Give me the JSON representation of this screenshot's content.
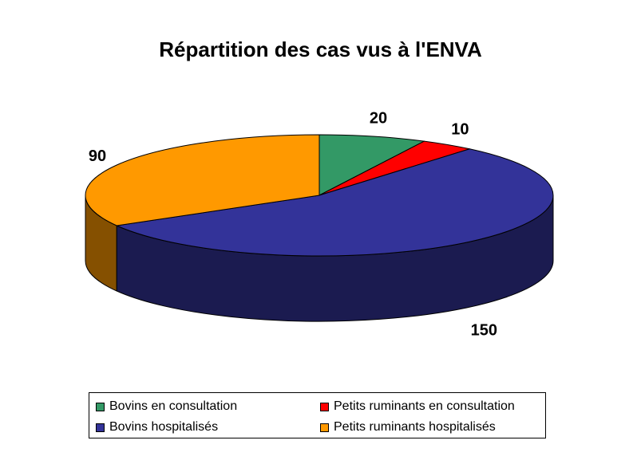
{
  "chart_data": {
    "type": "pie",
    "title": "Répartition des cas vus à l'ENVA",
    "categories": [
      "Bovins en consultation",
      "Petits ruminants en consultation",
      "Bovins hospitalisés",
      "Petits ruminants hospitalisés"
    ],
    "values": [
      20,
      10,
      150,
      90
    ],
    "data_labels": [
      "20",
      "10",
      "150",
      "90"
    ],
    "colors": [
      "#339966",
      "#FF0000",
      "#333399",
      "#FF9900"
    ],
    "legend_position": "bottom",
    "three_d": true
  }
}
